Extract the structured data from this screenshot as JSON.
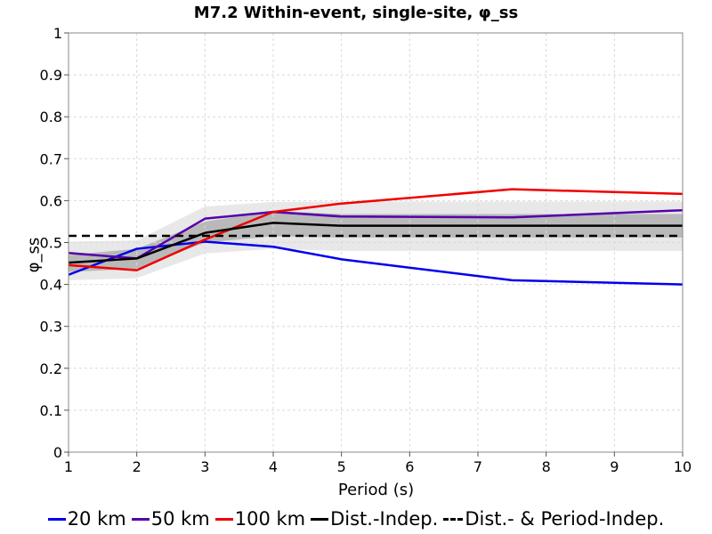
{
  "chart_data": {
    "type": "line",
    "title": "M7.2 Within-event, single-site, φ_ss",
    "xlabel": "Period (s)",
    "ylabel": "φ_ss",
    "xlim": [
      1,
      10
    ],
    "ylim": [
      0,
      1
    ],
    "x_ticks": [
      "1",
      "2",
      "3",
      "4",
      "5",
      "6",
      "7",
      "8",
      "9",
      "10"
    ],
    "y_ticks": [
      "0",
      "0.1",
      "0.2",
      "0.3",
      "0.4",
      "0.5",
      "0.6",
      "0.7",
      "0.8",
      "0.9",
      "1"
    ],
    "grid": true,
    "legend_position": "bottom",
    "series": [
      {
        "name": "20 km",
        "color": "#0000ee",
        "style": "solid",
        "x": [
          1,
          2,
          3,
          4,
          5,
          7.5,
          10
        ],
        "y": [
          0.423,
          0.485,
          0.502,
          0.49,
          0.46,
          0.41,
          0.4
        ]
      },
      {
        "name": "50 km",
        "color": "#5500aa",
        "style": "solid",
        "x": [
          1,
          2,
          3,
          4,
          5,
          7.5,
          10
        ],
        "y": [
          0.475,
          0.462,
          0.557,
          0.573,
          0.562,
          0.56,
          0.577
        ]
      },
      {
        "name": "100 km",
        "color": "#ee0000",
        "style": "solid",
        "x": [
          1,
          2,
          3,
          4,
          5,
          7.5,
          10
        ],
        "y": [
          0.446,
          0.434,
          0.507,
          0.573,
          0.593,
          0.627,
          0.616
        ]
      },
      {
        "name": "Dist.-Indep.",
        "color": "#000000",
        "style": "solid",
        "x": [
          1,
          2,
          3,
          4,
          5,
          7.5,
          10
        ],
        "y": [
          0.452,
          0.462,
          0.523,
          0.547,
          0.54,
          0.54,
          0.54
        ]
      },
      {
        "name": "Dist.- & Period-Indep.",
        "color": "#000000",
        "style": "dashed",
        "x": [
          1,
          10
        ],
        "y": [
          0.516,
          0.516
        ]
      }
    ],
    "bands": [
      {
        "color": "#e8e8e8",
        "x": [
          1,
          2,
          3,
          4,
          5,
          7.5,
          10
        ],
        "lower": [
          0.41,
          0.415,
          0.474,
          0.485,
          0.48,
          0.48,
          0.48
        ],
        "upper": [
          0.502,
          0.505,
          0.586,
          0.597,
          0.598,
          0.598,
          0.598
        ]
      },
      {
        "color": "#b9b9b9",
        "x": [
          1,
          2,
          3,
          4,
          5,
          7.5,
          10
        ],
        "lower": [
          0.43,
          0.437,
          0.5,
          0.515,
          0.512,
          0.512,
          0.512
        ],
        "upper": [
          0.47,
          0.485,
          0.55,
          0.575,
          0.568,
          0.568,
          0.568
        ]
      }
    ]
  }
}
